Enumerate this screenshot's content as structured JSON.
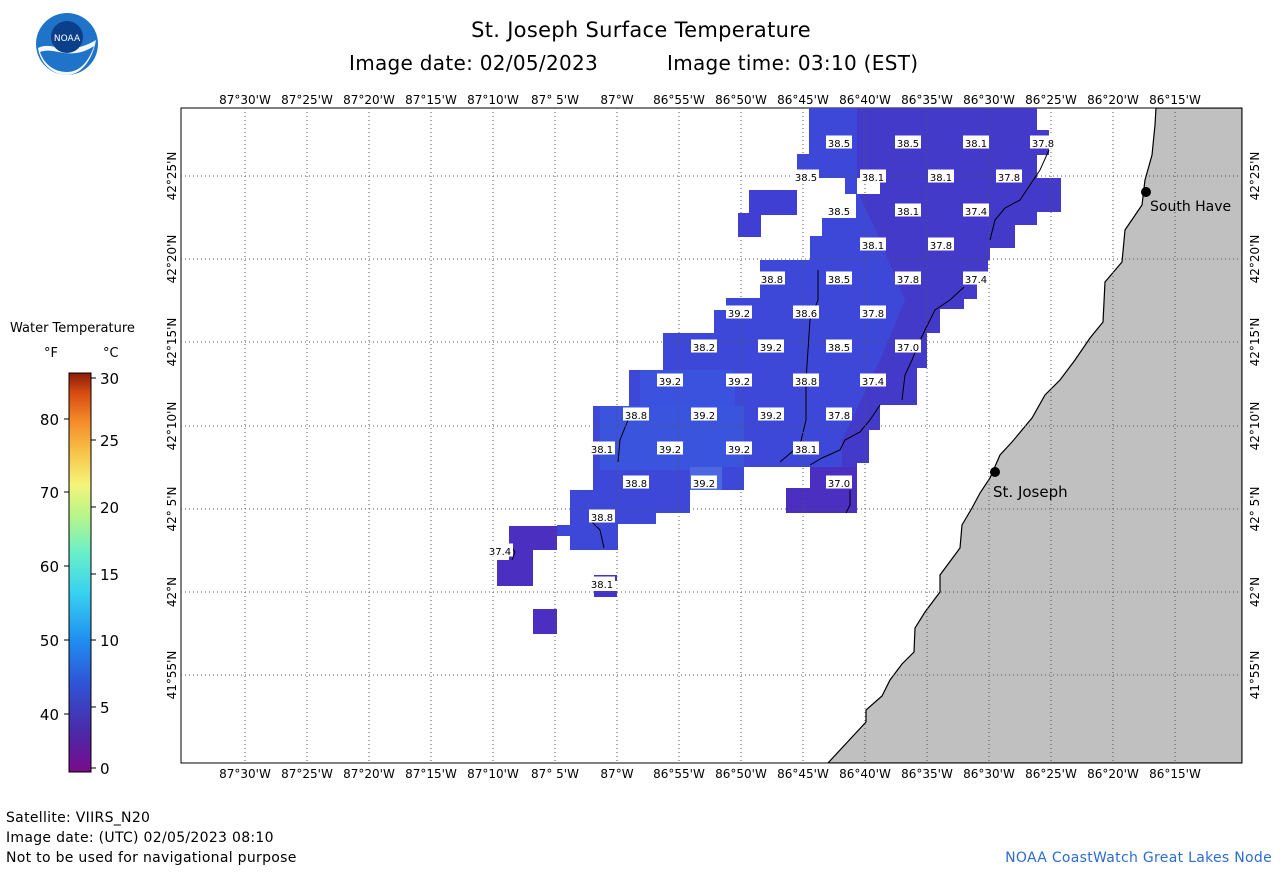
{
  "title": "St. Joseph Surface Temperature",
  "image_date_label": "Image date: 02/05/2023",
  "image_time_label": "Image time: 03:10 (EST)",
  "logo_text": "NOAA",
  "legend": {
    "title": "Water Temperature",
    "unit_f": "°F",
    "unit_c": "°C",
    "f_ticks": [
      "80",
      "70",
      "60",
      "50",
      "40"
    ],
    "c_ticks": [
      "30",
      "25",
      "20",
      "15",
      "10",
      "5",
      "0"
    ]
  },
  "lon_labels": [
    "87°30'W",
    "87°25'W",
    "87°20'W",
    "87°15'W",
    "87°10'W",
    "87° 5'W",
    "87°W",
    "86°55'W",
    "86°50'W",
    "86°45'W",
    "86°40'W",
    "86°35'W",
    "86°30'W",
    "86°25'W",
    "86°20'W",
    "86°15'W"
  ],
  "lat_labels": [
    "42°25'N",
    "42°20'N",
    "42°15'N",
    "42°10'N",
    "42° 5'N",
    "42°N",
    "41°55'N"
  ],
  "places": [
    {
      "name": "South Have"
    },
    {
      "name": "St. Joseph"
    }
  ],
  "temperature_labels": [
    "38.5",
    "38.5",
    "38.1",
    "37.8",
    "38.5",
    "38.1",
    "38.1",
    "37.8",
    "38.5",
    "38.1",
    "37.4",
    "38.1",
    "37.8",
    "38.8",
    "38.5",
    "37.8",
    "37.4",
    "39.2",
    "38.6",
    "37.8",
    "38.2",
    "39.2",
    "38.5",
    "37.0",
    "39.2",
    "39.2",
    "38.8",
    "37.4",
    "38.8",
    "39.2",
    "39.2",
    "37.8",
    "38.1",
    "39.2",
    "39.2",
    "38.1",
    "38.8",
    "39.2",
    "37.0",
    "38.8",
    "37.4",
    "38.1"
  ],
  "footer": {
    "satellite": "Satellite: VIIRS_N20",
    "utc_date": "Image date: (UTC) 02/05/2023  08:10",
    "disclaimer": "Not to be used for navigational purpose",
    "credit": "NOAA CoastWatch Great Lakes Node"
  },
  "colors": {
    "water_cold": "#4a2fc0",
    "water_mid": "#3f3ed2",
    "water_warm": "#3a55de",
    "land": "#c0c0c0",
    "credit": "#2d6ccf"
  }
}
